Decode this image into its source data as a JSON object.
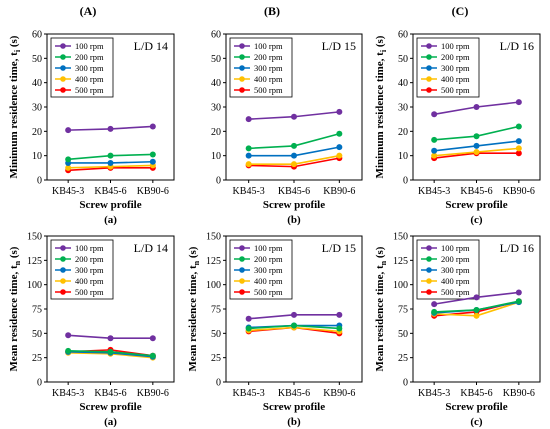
{
  "figure": {
    "column_headers": [
      "(A)",
      "(B)",
      "(C)"
    ],
    "legend_labels": [
      "100 rpm",
      "200 rpm",
      "300 rpm",
      "400 rpm",
      "500 rpm"
    ],
    "colors": [
      "#7030a0",
      "#00b050",
      "#0070c0",
      "#ffc000",
      "#ff0000"
    ]
  },
  "chart_data": [
    {
      "type": "line",
      "panel_label": "(a)",
      "annotation": "L/D 14",
      "xlabel": "Screw profile",
      "ylabel_main": "Minimum residence time, t",
      "ylabel_sub": "i",
      "ylabel_unit": " (s)",
      "categories": [
        "KB45-3",
        "KB45-6",
        "KB90-6"
      ],
      "ylim": [
        0,
        60
      ],
      "yticks": [
        0,
        10,
        20,
        30,
        40,
        50,
        60
      ],
      "series": [
        {
          "name": "100 rpm",
          "values": [
            20.5,
            21,
            22
          ]
        },
        {
          "name": "200 rpm",
          "values": [
            8.5,
            10,
            10.5
          ]
        },
        {
          "name": "300 rpm",
          "values": [
            7,
            7,
            7.5
          ]
        },
        {
          "name": "400 rpm",
          "values": [
            5,
            5.5,
            6
          ]
        },
        {
          "name": "500 rpm",
          "values": [
            4,
            5,
            5
          ]
        }
      ]
    },
    {
      "type": "line",
      "panel_label": "(b)",
      "annotation": "L/D 15",
      "xlabel": "Screw profile",
      "ylabel_main": "",
      "ylabel_sub": "",
      "ylabel_unit": "",
      "categories": [
        "KB45-3",
        "KB45-6",
        "KB90-6"
      ],
      "ylim": [
        0,
        60
      ],
      "yticks": [
        0,
        10,
        20,
        30,
        40,
        50,
        60
      ],
      "series": [
        {
          "name": "100 rpm",
          "values": [
            25,
            26,
            28
          ]
        },
        {
          "name": "200 rpm",
          "values": [
            13,
            14,
            19
          ]
        },
        {
          "name": "300 rpm",
          "values": [
            10,
            10,
            13.5
          ]
        },
        {
          "name": "400 rpm",
          "values": [
            6.5,
            6.5,
            10
          ]
        },
        {
          "name": "500 rpm",
          "values": [
            6,
            5.5,
            9
          ]
        }
      ]
    },
    {
      "type": "line",
      "panel_label": "(c)",
      "annotation": "L/D 16",
      "xlabel": "Screw profile",
      "ylabel_main": "Minimum residence time, t",
      "ylabel_sub": "i",
      "ylabel_unit": " (s)",
      "categories": [
        "KB45-3",
        "KB45-6",
        "KB90-6"
      ],
      "ylim": [
        0,
        60
      ],
      "yticks": [
        0,
        10,
        20,
        30,
        40,
        50,
        60
      ],
      "series": [
        {
          "name": "100 rpm",
          "values": [
            27,
            30,
            32
          ]
        },
        {
          "name": "200 rpm",
          "values": [
            16.5,
            18,
            22
          ]
        },
        {
          "name": "300 rpm",
          "values": [
            12,
            14,
            16
          ]
        },
        {
          "name": "400 rpm",
          "values": [
            10,
            11.5,
            13
          ]
        },
        {
          "name": "500 rpm",
          "values": [
            9,
            11,
            11
          ]
        }
      ]
    },
    {
      "type": "line",
      "panel_label": "(a)",
      "annotation": "L/D 14",
      "xlabel": "Screw profile",
      "ylabel_main": "Mean residence time, t",
      "ylabel_sub": "n",
      "ylabel_unit": " (s)",
      "categories": [
        "KB45-3",
        "KB45-6",
        "KB90-6"
      ],
      "ylim": [
        0,
        150
      ],
      "yticks": [
        0,
        25,
        50,
        75,
        100,
        125,
        150
      ],
      "series": [
        {
          "name": "100 rpm",
          "values": [
            48,
            45,
            45
          ]
        },
        {
          "name": "200 rpm",
          "values": [
            32,
            31,
            27
          ]
        },
        {
          "name": "300 rpm",
          "values": [
            31,
            30,
            26
          ]
        },
        {
          "name": "400 rpm",
          "values": [
            30,
            29,
            25
          ]
        },
        {
          "name": "500 rpm",
          "values": [
            31,
            33,
            27
          ]
        }
      ]
    },
    {
      "type": "line",
      "panel_label": "(b)",
      "annotation": "L/D 15",
      "xlabel": "Screw profile",
      "ylabel_main": "Mean residence time, t",
      "ylabel_sub": "n",
      "ylabel_unit": " (s)",
      "categories": [
        "KB45-3",
        "KB45-6",
        "KB90-6"
      ],
      "ylim": [
        0,
        150
      ],
      "yticks": [
        0,
        25,
        50,
        75,
        100,
        125,
        150
      ],
      "series": [
        {
          "name": "100 rpm",
          "values": [
            65,
            69,
            69
          ]
        },
        {
          "name": "200 rpm",
          "values": [
            55,
            58,
            55
          ]
        },
        {
          "name": "300 rpm",
          "values": [
            56,
            58,
            58
          ]
        },
        {
          "name": "400 rpm",
          "values": [
            53,
            56,
            52
          ]
        },
        {
          "name": "500 rpm",
          "values": [
            52,
            56,
            50
          ]
        }
      ]
    },
    {
      "type": "line",
      "panel_label": "(c)",
      "annotation": "L/D 16",
      "xlabel": "Screw profile",
      "ylabel_main": "Mean residence time, t",
      "ylabel_sub": "n",
      "ylabel_unit": " (s)",
      "categories": [
        "KB45-3",
        "KB45-6",
        "KB90-6"
      ],
      "ylim": [
        0,
        150
      ],
      "yticks": [
        0,
        25,
        50,
        75,
        100,
        125,
        150
      ],
      "series": [
        {
          "name": "100 rpm",
          "values": [
            80,
            87,
            92
          ]
        },
        {
          "name": "200 rpm",
          "values": [
            72,
            74,
            83
          ]
        },
        {
          "name": "300 rpm",
          "values": [
            71,
            74,
            82
          ]
        },
        {
          "name": "400 rpm",
          "values": [
            70,
            68,
            82
          ]
        },
        {
          "name": "500 rpm",
          "values": [
            68,
            72,
            83
          ]
        }
      ]
    }
  ]
}
